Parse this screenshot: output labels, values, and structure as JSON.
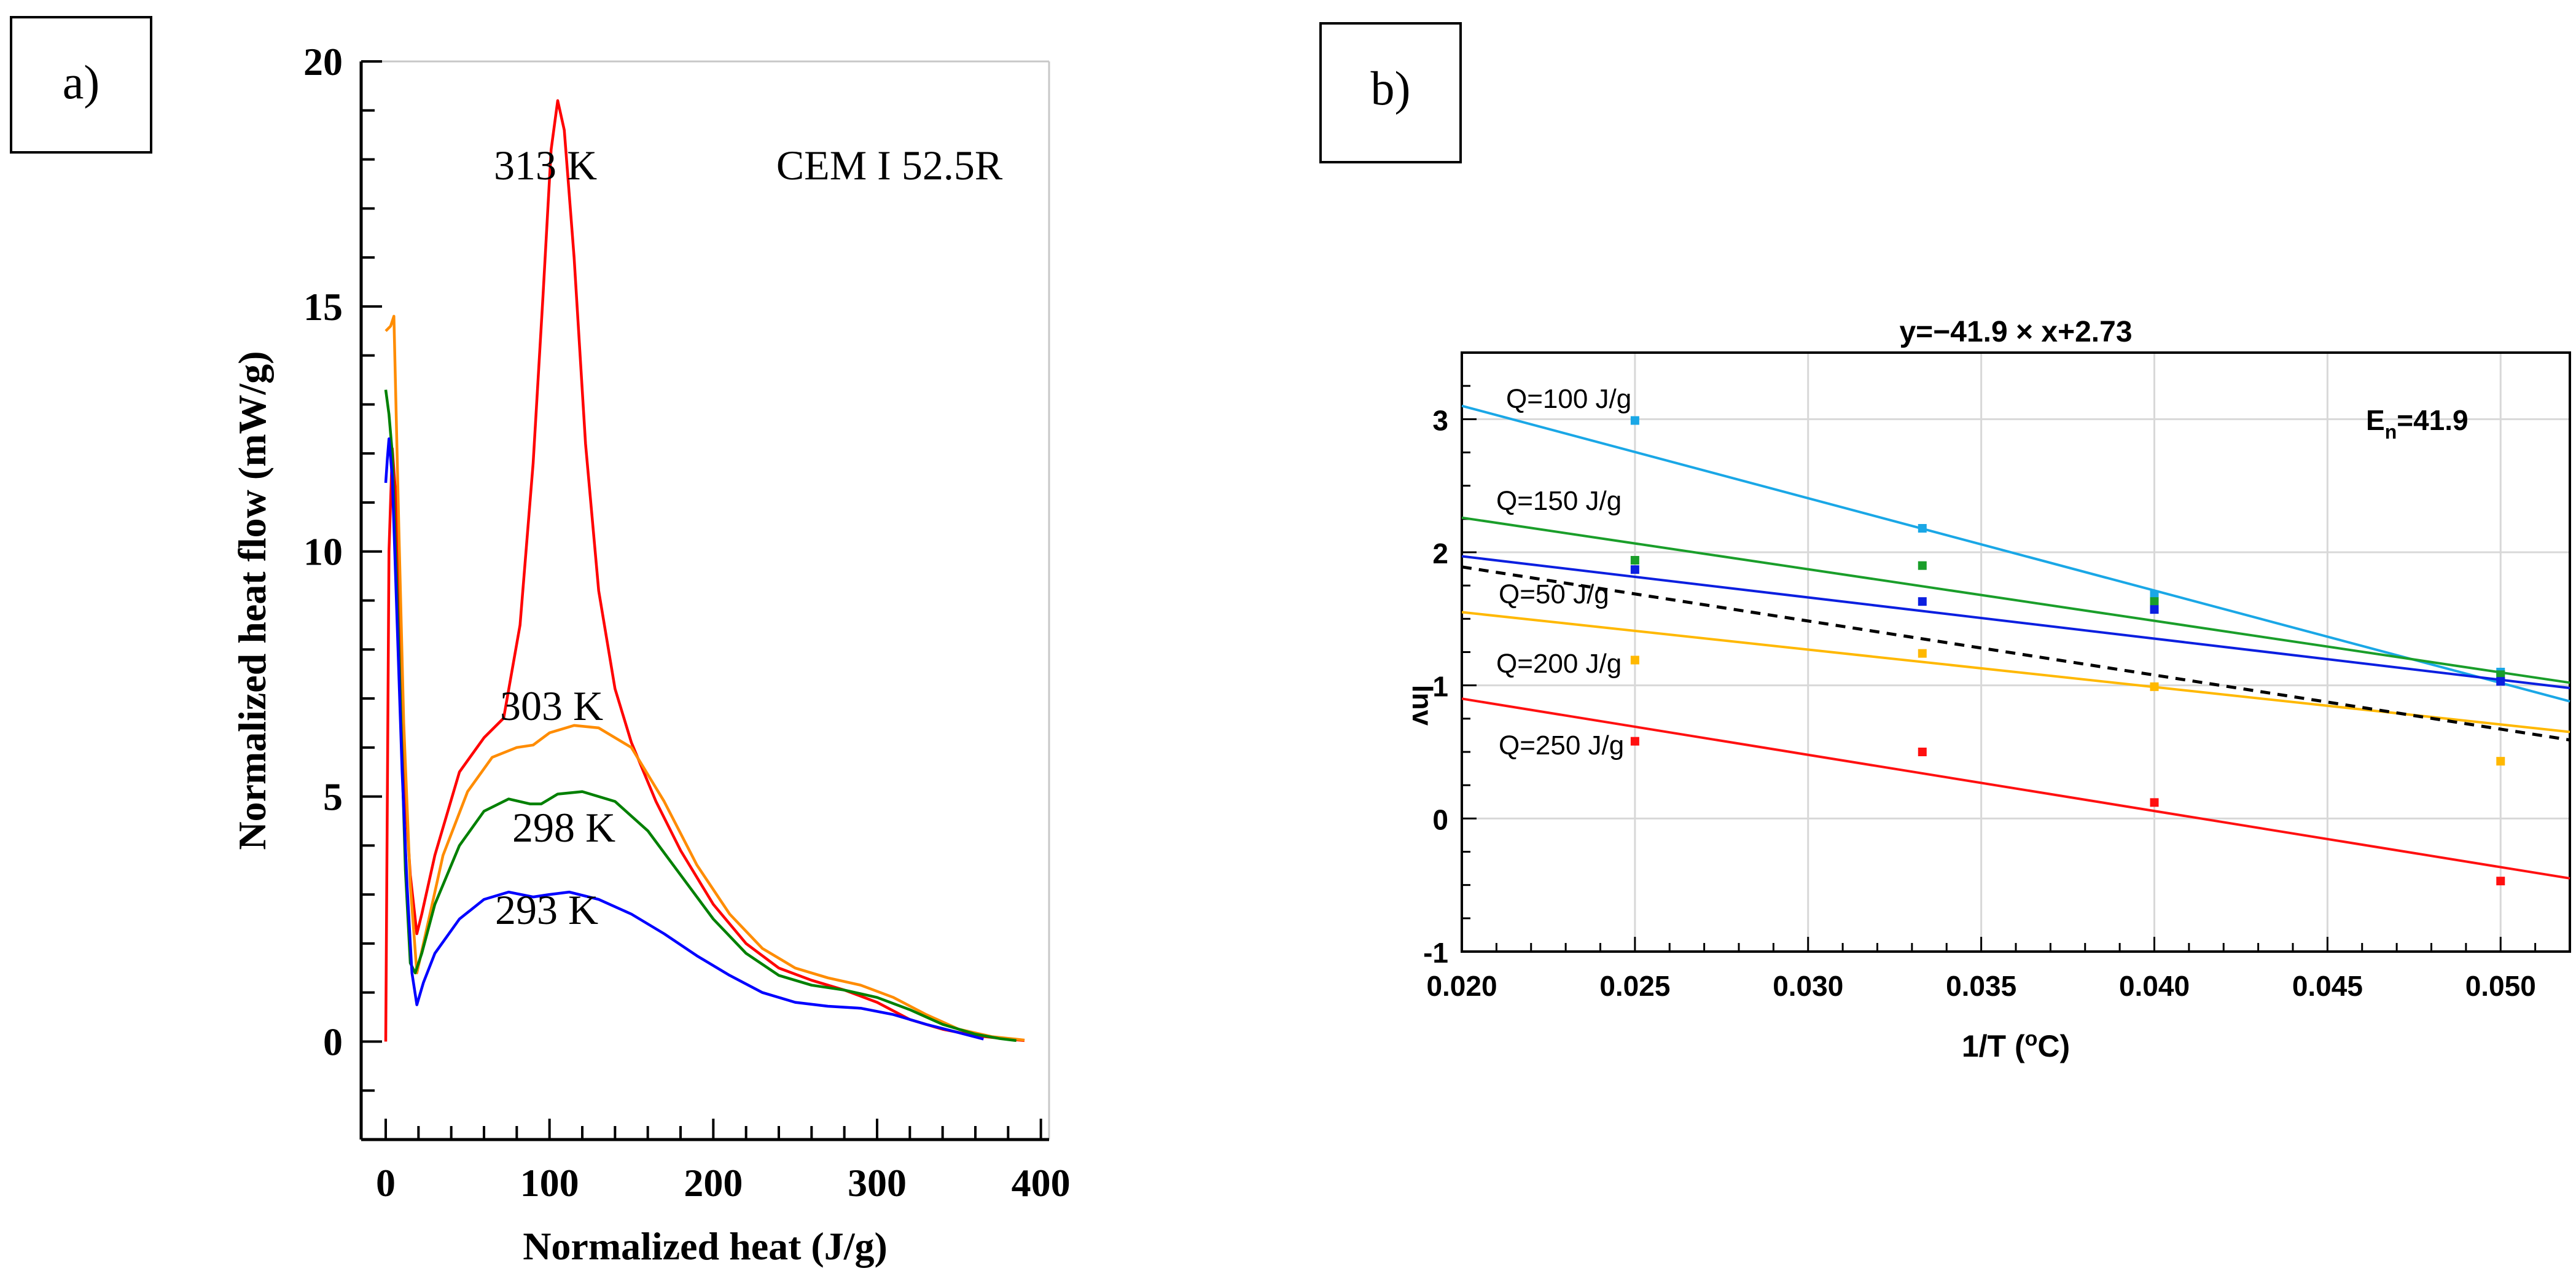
{
  "panels": {
    "a_label": "a)",
    "b_label": "b)"
  },
  "chart_data": [
    {
      "type": "line",
      "title": "",
      "annotation": "CEM  I 52.5R",
      "xlabel": "Normalized heat (J/g)",
      "ylabel": "Normalized heat flow (mW/g)",
      "xlim": [
        -15,
        405
      ],
      "ylim": [
        -2,
        20
      ],
      "x_ticks": [
        0,
        100,
        200,
        300,
        400
      ],
      "y_ticks": [
        0,
        5,
        10,
        15,
        20
      ],
      "grid": false,
      "series": [
        {
          "name": "313  K",
          "color": "#ff0000",
          "points": [
            [
              0,
              0
            ],
            [
              2,
              10
            ],
            [
              4,
              12.1
            ],
            [
              6,
              11.2
            ],
            [
              9,
              8
            ],
            [
              12,
              5
            ],
            [
              15,
              3.4
            ],
            [
              19,
              2.2
            ],
            [
              22,
              2.6
            ],
            [
              30,
              3.8
            ],
            [
              45,
              5.5
            ],
            [
              60,
              6.2
            ],
            [
              72,
              6.6
            ],
            [
              82,
              8.5
            ],
            [
              90,
              11.8
            ],
            [
              96,
              15.2
            ],
            [
              101,
              18.2
            ],
            [
              105,
              19.2
            ],
            [
              109,
              18.6
            ],
            [
              115,
              16
            ],
            [
              122,
              12.2
            ],
            [
              130,
              9.2
            ],
            [
              140,
              7.2
            ],
            [
              150,
              6.1
            ],
            [
              165,
              4.9
            ],
            [
              180,
              3.9
            ],
            [
              200,
              2.8
            ],
            [
              220,
              2.0
            ],
            [
              240,
              1.5
            ],
            [
              260,
              1.25
            ],
            [
              280,
              1.05
            ],
            [
              300,
              0.8
            ],
            [
              320,
              0.45
            ],
            [
              340,
              0.25
            ],
            [
              360,
              0.12
            ],
            [
              380,
              0.05
            ],
            [
              390,
              0.02
            ]
          ]
        },
        {
          "name": "303  K",
          "color": "#ff8c00",
          "points": [
            [
              0,
              14.5
            ],
            [
              3,
              14.6
            ],
            [
              5,
              14.8
            ],
            [
              8,
              10.5
            ],
            [
              11,
              6.5
            ],
            [
              15,
              3.2
            ],
            [
              19,
              1.4
            ],
            [
              25,
              2.3
            ],
            [
              35,
              3.8
            ],
            [
              50,
              5.1
            ],
            [
              65,
              5.8
            ],
            [
              80,
              6.0
            ],
            [
              90,
              6.05
            ],
            [
              100,
              6.3
            ],
            [
              115,
              6.45
            ],
            [
              130,
              6.4
            ],
            [
              150,
              6.0
            ],
            [
              170,
              4.9
            ],
            [
              190,
              3.6
            ],
            [
              210,
              2.6
            ],
            [
              230,
              1.9
            ],
            [
              250,
              1.5
            ],
            [
              270,
              1.3
            ],
            [
              290,
              1.15
            ],
            [
              310,
              0.9
            ],
            [
              330,
              0.55
            ],
            [
              350,
              0.25
            ],
            [
              370,
              0.1
            ],
            [
              390,
              0.03
            ]
          ]
        },
        {
          "name": "298  K",
          "color": "#008000",
          "points": [
            [
              0,
              13.3
            ],
            [
              2,
              12.8
            ],
            [
              4,
              12.0
            ],
            [
              8,
              8.0
            ],
            [
              12,
              3.5
            ],
            [
              15,
              1.6
            ],
            [
              18,
              1.4
            ],
            [
              22,
              1.8
            ],
            [
              30,
              2.8
            ],
            [
              45,
              4.0
            ],
            [
              60,
              4.7
            ],
            [
              75,
              4.95
            ],
            [
              88,
              4.85
            ],
            [
              95,
              4.85
            ],
            [
              105,
              5.05
            ],
            [
              120,
              5.1
            ],
            [
              140,
              4.9
            ],
            [
              160,
              4.3
            ],
            [
              180,
              3.4
            ],
            [
              200,
              2.5
            ],
            [
              220,
              1.8
            ],
            [
              240,
              1.35
            ],
            [
              260,
              1.15
            ],
            [
              280,
              1.05
            ],
            [
              300,
              0.9
            ],
            [
              320,
              0.65
            ],
            [
              340,
              0.35
            ],
            [
              360,
              0.15
            ],
            [
              375,
              0.06
            ],
            [
              385,
              0.02
            ]
          ]
        },
        {
          "name": "293  K",
          "color": "#0000ff",
          "points": [
            [
              0,
              11.4
            ],
            [
              1,
              11.9
            ],
            [
              2,
              12.3
            ],
            [
              4,
              11.5
            ],
            [
              7,
              8.5
            ],
            [
              10,
              5.5
            ],
            [
              13,
              3.2
            ],
            [
              16,
              1.4
            ],
            [
              19,
              0.75
            ],
            [
              23,
              1.2
            ],
            [
              30,
              1.8
            ],
            [
              45,
              2.5
            ],
            [
              60,
              2.9
            ],
            [
              75,
              3.05
            ],
            [
              90,
              2.95
            ],
            [
              100,
              3.0
            ],
            [
              112,
              3.05
            ],
            [
              130,
              2.9
            ],
            [
              150,
              2.6
            ],
            [
              170,
              2.2
            ],
            [
              190,
              1.75
            ],
            [
              210,
              1.35
            ],
            [
              230,
              1.0
            ],
            [
              250,
              0.8
            ],
            [
              270,
              0.72
            ],
            [
              290,
              0.68
            ],
            [
              310,
              0.55
            ],
            [
              330,
              0.35
            ],
            [
              350,
              0.18
            ],
            [
              365,
              0.05
            ]
          ]
        }
      ]
    },
    {
      "type": "scatter",
      "title": "y=−41.9 × x+2.73",
      "annotation_main": "E",
      "annotation_sub": "n",
      "annotation_value": "=41.9",
      "xlabel_main": "1/T (",
      "xlabel_sup": "o",
      "xlabel_end": "C)",
      "ylabel": "lnv",
      "xlim": [
        0.02,
        0.052
      ],
      "ylim": [
        -1,
        3.5
      ],
      "x_ticks": [
        0.02,
        0.025,
        0.03,
        0.035,
        0.04,
        0.045,
        0.05
      ],
      "x_tick_labels": [
        "0.020",
        "0.025",
        "0.030",
        "0.035",
        "0.040",
        "0.045",
        "0.050"
      ],
      "y_ticks": [
        -1,
        0,
        1,
        2,
        3
      ],
      "grid": true,
      "series": [
        {
          "name": "Q=100 J/g",
          "color": "#1aa7e6",
          "points": [
            [
              0.025,
              2.99
            ],
            [
              0.0333,
              2.18
            ],
            [
              0.04,
              1.68
            ],
            [
              0.05,
              1.1
            ]
          ],
          "fit": [
            [
              0.02,
              3.1
            ],
            [
              0.052,
              0.88
            ]
          ]
        },
        {
          "name": "Q=150 J/g",
          "color": "#1a9e2a",
          "points": [
            [
              0.025,
              1.94
            ],
            [
              0.0333,
              1.9
            ],
            [
              0.04,
              1.63
            ],
            [
              0.05,
              1.08
            ]
          ],
          "fit": [
            [
              0.02,
              2.26
            ],
            [
              0.052,
              1.02
            ]
          ]
        },
        {
          "name": "Q=50 J/g",
          "color": "#0b1fe0",
          "points": [
            [
              0.025,
              1.87
            ],
            [
              0.0333,
              1.63
            ],
            [
              0.04,
              1.57
            ],
            [
              0.05,
              1.03
            ]
          ],
          "fit": [
            [
              0.02,
              1.97
            ],
            [
              0.052,
              0.98
            ]
          ]
        },
        {
          "name": "Q=200 J/g",
          "color": "#ffb800",
          "points": [
            [
              0.025,
              1.19
            ],
            [
              0.0333,
              1.24
            ],
            [
              0.04,
              0.99
            ],
            [
              0.05,
              0.43
            ]
          ],
          "fit": [
            [
              0.02,
              1.55
            ],
            [
              0.052,
              0.65
            ]
          ]
        },
        {
          "name": "Q=250 J/g",
          "color": "#ff1010",
          "points": [
            [
              0.025,
              0.58
            ],
            [
              0.0333,
              0.5
            ],
            [
              0.04,
              0.12
            ],
            [
              0.05,
              -0.47
            ]
          ],
          "fit": [
            [
              0.02,
              0.9
            ],
            [
              0.052,
              -0.45
            ]
          ]
        },
        {
          "name": "",
          "color": "#000000",
          "dashed": true,
          "points": [],
          "fit": [
            [
              0.02,
              1.89
            ],
            [
              0.052,
              0.59
            ]
          ]
        }
      ]
    }
  ]
}
